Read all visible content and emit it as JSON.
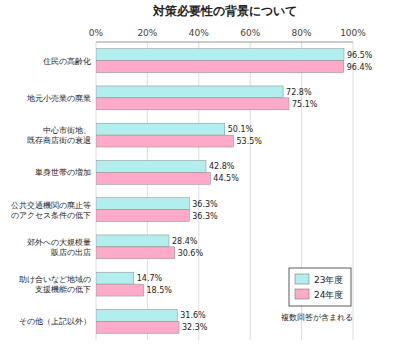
{
  "chart_data": {
    "type": "bar",
    "orientation": "horizontal",
    "title": "対策必要性の背景について",
    "categories": [
      "住民の高齢化",
      "地元小売業の廃業",
      "中心市街地、\n既存商店街の衰退",
      "単身世帯の増加",
      "公共交通機関の廃止等\nのアクセス条件の低下",
      "郊外への大規模量\n販店の出店",
      "助け合いなど地域の\n支援機能の低下",
      "その他（上記以外）"
    ],
    "series": [
      {
        "name": "23年度",
        "color": "#b2eeee",
        "values": [
          96.5,
          72.8,
          50.1,
          42.8,
          36.3,
          28.4,
          14.7,
          31.6
        ],
        "value_labels": [
          "96.5%",
          "72.8%",
          "50.1%",
          "42.8%",
          "36.3%",
          "28.4%",
          "14.7%",
          "31.6%"
        ]
      },
      {
        "name": "24年度",
        "color": "#ffaac8",
        "values": [
          96.4,
          75.1,
          53.5,
          44.5,
          36.3,
          30.6,
          18.5,
          32.3
        ],
        "value_labels": [
          "96.4%",
          "75.1%",
          "53.5%",
          "44.5%",
          "36.3%",
          "30.6%",
          "18.5%",
          "32.3%"
        ]
      }
    ],
    "xlim": [
      0,
      100
    ],
    "xticks": [
      {
        "value": 0,
        "label": "0%"
      },
      {
        "value": 20,
        "label": "20%"
      },
      {
        "value": 40,
        "label": "40%"
      },
      {
        "value": 60,
        "label": "60%"
      },
      {
        "value": 80,
        "label": "80%"
      },
      {
        "value": 100,
        "label": "100%"
      }
    ],
    "grid": true,
    "legend": "lower right",
    "data_labels": true,
    "annotations": [
      "複数回答が含まれる"
    ]
  }
}
